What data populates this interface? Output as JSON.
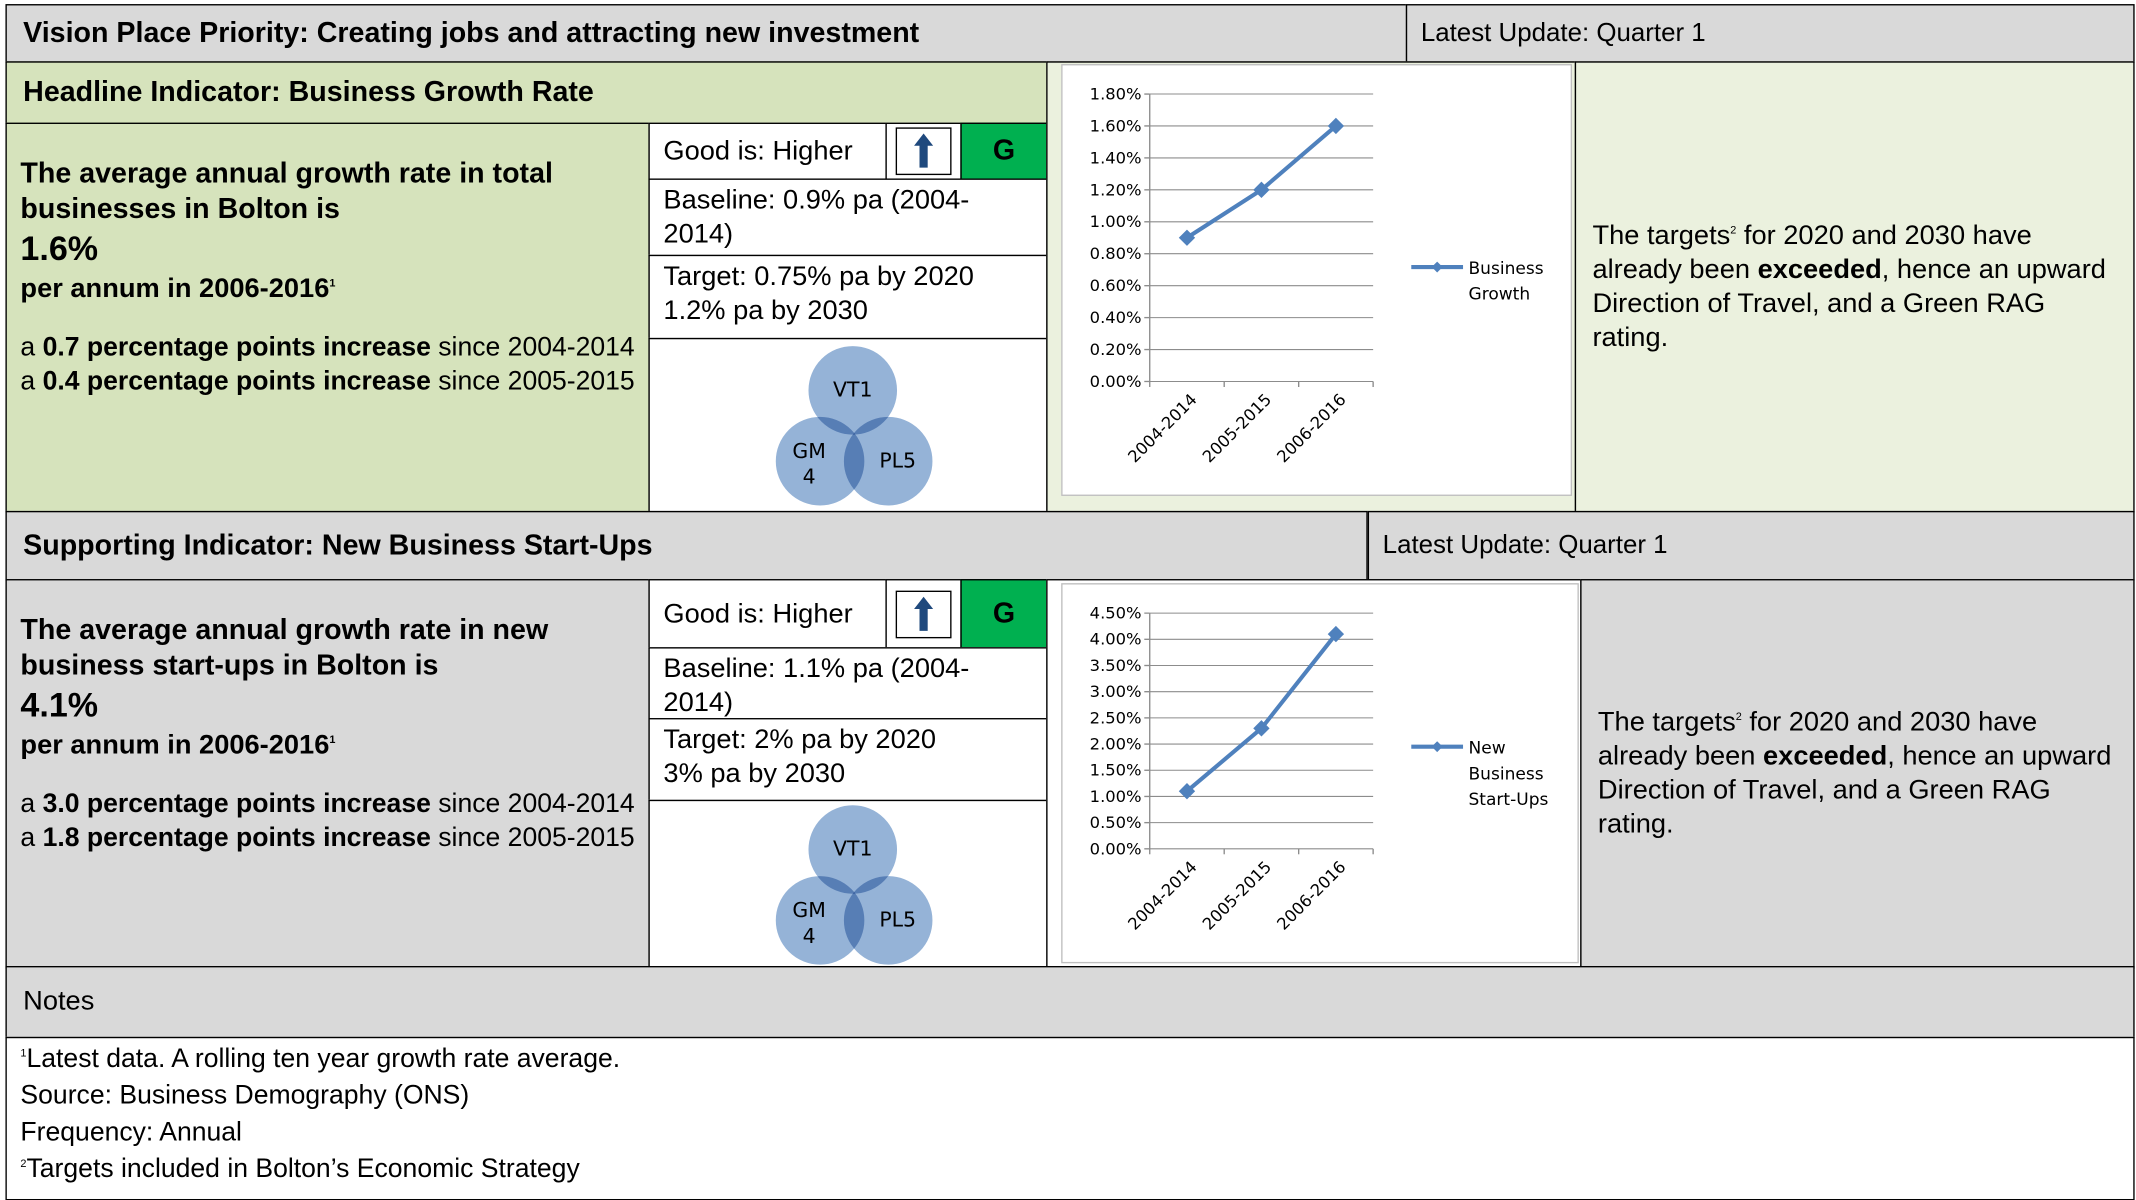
{
  "header": {
    "title": "Vision Place Priority: Creating jobs and attracting new investment",
    "update": "Latest Update: Quarter 1"
  },
  "indicators": [
    {
      "heading": "Headline Indicator: Business Growth Rate",
      "statement": "The average annual growth rate in total businesses in Bolton is",
      "value": "1.6%",
      "period": "per annum in 2006-2016",
      "period_sup": "1",
      "changes": [
        [
          {
            "text": "a "
          },
          {
            "text": "0.7 percentage points increase",
            "bold": true
          },
          {
            "text": " since 2004-2014"
          }
        ],
        [
          {
            "text": "a "
          },
          {
            "text": "0.4 percentage points increase",
            "bold": true
          },
          {
            "text": " since 2005-2015"
          }
        ]
      ],
      "good": "Good is: Higher",
      "rag": "G",
      "baseline": "Baseline: 0.9% pa (2004-2014)",
      "target": [
        "Target: 0.75% pa by 2020",
        "1.2% pa by 2030"
      ],
      "venn": [
        "VT1",
        "GM 4",
        "PL5"
      ],
      "commentary": [
        {
          "text": "The targets"
        },
        {
          "text": "2",
          "sup": true
        },
        {
          "text": " for 2020 and 2030 have already been "
        },
        {
          "text": "exceeded",
          "bold": true
        },
        {
          "text": ", hence an upward Direction of Travel, and a Green RAG rating."
        }
      ],
      "chart": {
        "type": "line",
        "categories": [
          "2004-2014",
          "2005-2015",
          "2006-2016"
        ],
        "series": [
          {
            "name": "Business Growth",
            "color": "#4f81bd",
            "values": [
              0.9,
              1.2,
              1.6
            ]
          }
        ],
        "ylim": [
          0,
          1.8
        ],
        "yticks": [
          {
            "value": 0,
            "label": "0.00%"
          },
          {
            "value": 0.2,
            "label": "0.20%"
          },
          {
            "value": 0.4,
            "label": "0.40%"
          },
          {
            "value": 0.6,
            "label": "0.60%"
          },
          {
            "value": 0.8,
            "label": "0.80%"
          },
          {
            "value": 1,
            "label": "1.00%"
          },
          {
            "value": 1.2,
            "label": "1.20%"
          },
          {
            "value": 1.4,
            "label": "1.40%"
          },
          {
            "value": 1.6,
            "label": "1.60%"
          },
          {
            "value": 1.8,
            "label": "1.80%"
          }
        ],
        "grid": true,
        "legend": "right"
      }
    },
    {
      "heading": "Supporting Indicator: New Business Start-Ups",
      "update": "Latest Update: Quarter 1",
      "statement": "The average annual growth rate in new business start-ups in Bolton is",
      "value": "4.1%",
      "period": "per annum in 2006-2016",
      "period_sup": "1",
      "changes": [
        [
          {
            "text": "a "
          },
          {
            "text": "3.0 percentage points increase",
            "bold": true
          },
          {
            "text": " since 2004-2014"
          }
        ],
        [
          {
            "text": "a "
          },
          {
            "text": "1.8 percentage points increase",
            "bold": true
          },
          {
            "text": " since 2005-2015"
          }
        ]
      ],
      "good": "Good is: Higher",
      "rag": "G",
      "baseline": "Baseline: 1.1% pa (2004-2014)",
      "target": [
        "Target: 2% pa by 2020",
        "3% pa by 2030"
      ],
      "venn": [
        "VT1",
        "GM 4",
        "PL5"
      ],
      "commentary": [
        {
          "text": "The targets"
        },
        {
          "text": "2",
          "sup": true
        },
        {
          "text": " for 2020 and 2030 have already been "
        },
        {
          "text": "exceeded",
          "bold": true
        },
        {
          "text": ", hence an upward Direction of Travel, and a Green RAG rating."
        }
      ],
      "chart": {
        "type": "line",
        "categories": [
          "2004-2014",
          "2005-2015",
          "2006-2016"
        ],
        "series": [
          {
            "name": "New Business Start-Ups",
            "color": "#4f81bd",
            "values": [
              1.1,
              2.3,
              4.1
            ]
          }
        ],
        "ylim": [
          0,
          4.5
        ],
        "yticks": [
          {
            "value": 0,
            "label": "0.00%"
          },
          {
            "value": 0.5,
            "label": "0.50%"
          },
          {
            "value": 1,
            "label": "1.00%"
          },
          {
            "value": 1.5,
            "label": "1.50%"
          },
          {
            "value": 2,
            "label": "2.00%"
          },
          {
            "value": 2.5,
            "label": "2.50%"
          },
          {
            "value": 3,
            "label": "3.00%"
          },
          {
            "value": 3.5,
            "label": "3.50%"
          },
          {
            "value": 4,
            "label": "4.00%"
          },
          {
            "value": 4.5,
            "label": "4.50%"
          }
        ],
        "grid": true,
        "legend": "right"
      }
    }
  ],
  "notes": {
    "title": "Notes",
    "lines": [
      [
        {
          "text": "1",
          "sup": true
        },
        {
          "text": "Latest data.  A rolling ten year growth rate average."
        }
      ],
      [
        {
          "text": "Source: Business Demography (ONS)"
        }
      ],
      [
        {
          "text": "Frequency: Annual"
        }
      ],
      [
        {
          "text": "2",
          "sup": true
        },
        {
          "text": "Targets included in Bolton’s Economic Strategy"
        }
      ]
    ]
  }
}
